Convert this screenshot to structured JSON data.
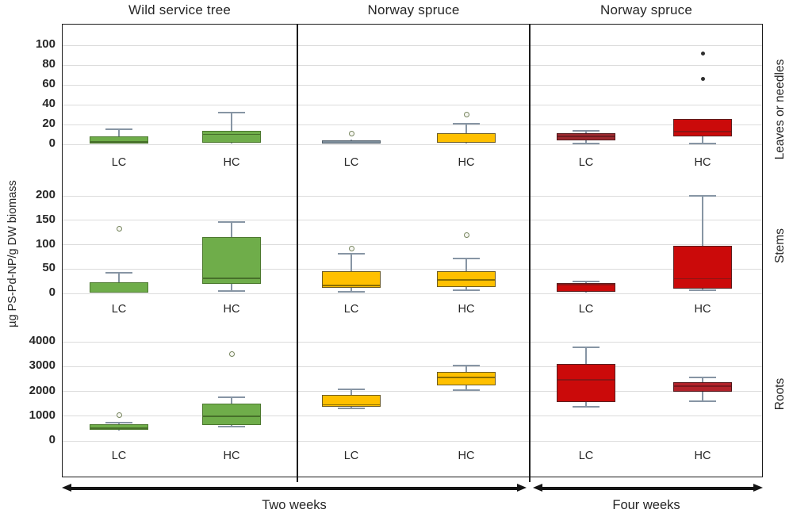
{
  "chart_data": {
    "type": "boxplot",
    "ylabel": "µg PS-Pd-NP/g DW biomass",
    "columns": [
      {
        "title": "Wild service tree",
        "period": "Two weeks",
        "color_key": "green"
      },
      {
        "title": "Norway spruce",
        "period": "Two weeks",
        "color_key": "yellow"
      },
      {
        "title": "Norway spruce",
        "period": "Four weeks",
        "color_key": "red"
      }
    ],
    "rows": [
      {
        "label": "Leaves or needles",
        "ticks": [
          0,
          20,
          40,
          60,
          80,
          100
        ],
        "ylim": [
          0,
          122
        ]
      },
      {
        "label": "Stems",
        "ticks": [
          0,
          50,
          100,
          150,
          200
        ],
        "ylim": [
          0,
          232
        ]
      },
      {
        "label": "Roots",
        "ticks": [
          0,
          1000,
          2000,
          3000,
          4000
        ],
        "ylim": [
          0,
          4830
        ]
      }
    ],
    "groups": [
      "LC",
      "HC"
    ],
    "periods": [
      {
        "label": "Two weeks",
        "panels": [
          0,
          1
        ]
      },
      {
        "label": "Four weeks",
        "panels": [
          2
        ]
      }
    ],
    "grid": "horizontal",
    "legend": "none",
    "boxes": [
      {
        "row": 0,
        "col": 0,
        "group": "LC",
        "color": "green",
        "low": 0.5,
        "q1": 1,
        "median": 2.5,
        "q3": 8,
        "high": 15,
        "outliers": []
      },
      {
        "row": 0,
        "col": 0,
        "group": "HC",
        "color": "green",
        "low": 1,
        "q1": 2,
        "median": 10,
        "q3": 14,
        "high": 32,
        "outliers": []
      },
      {
        "row": 0,
        "col": 1,
        "group": "LC",
        "color": "gray",
        "low": 0.5,
        "q1": 0.8,
        "median": 2,
        "q3": 4,
        "high": 4.5,
        "outliers": [
          11
        ]
      },
      {
        "row": 0,
        "col": 1,
        "group": "HC",
        "color": "yellow",
        "low": 1,
        "q1": 2,
        "median": 3,
        "q3": 11,
        "high": 21,
        "outliers": [
          30
        ]
      },
      {
        "row": 0,
        "col": 2,
        "group": "LC",
        "color": "red_dark",
        "low": 1,
        "q1": 4,
        "median": 8,
        "q3": 11,
        "high": 14,
        "outliers": []
      },
      {
        "row": 0,
        "col": 2,
        "group": "HC",
        "color": "red",
        "low": 1,
        "q1": 8,
        "median": 13,
        "q3": 26,
        "high": 26,
        "outliers": [
          66,
          92
        ]
      },
      {
        "row": 1,
        "col": 0,
        "group": "LC",
        "color": "green",
        "low": 1,
        "q1": 2,
        "median": 4,
        "q3": 23,
        "high": 43,
        "outliers": [
          133
        ]
      },
      {
        "row": 1,
        "col": 0,
        "group": "HC",
        "color": "green",
        "low": 5,
        "q1": 20,
        "median": 31,
        "q3": 115,
        "high": 147,
        "outliers": []
      },
      {
        "row": 1,
        "col": 1,
        "group": "LC",
        "color": "yellow",
        "low": 3,
        "q1": 12,
        "median": 16,
        "q3": 45,
        "high": 81,
        "outliers": [
          92
        ]
      },
      {
        "row": 1,
        "col": 1,
        "group": "HC",
        "color": "yellow",
        "low": 6,
        "q1": 13,
        "median": 28,
        "q3": 46,
        "high": 72,
        "outliers": [
          119
        ]
      },
      {
        "row": 1,
        "col": 2,
        "group": "LC",
        "color": "red",
        "low": 2,
        "q1": 3,
        "median": 18,
        "q3": 21,
        "high": 25,
        "outliers": []
      },
      {
        "row": 1,
        "col": 2,
        "group": "HC",
        "color": "red",
        "low": 7,
        "q1": 10,
        "median": 30,
        "q3": 97,
        "high": 200,
        "outliers": []
      },
      {
        "row": 2,
        "col": 0,
        "group": "LC",
        "color": "green",
        "low": 430,
        "q1": 450,
        "median": 520,
        "q3": 660,
        "high": 730,
        "outliers": [
          1050
        ]
      },
      {
        "row": 2,
        "col": 0,
        "group": "HC",
        "color": "green",
        "low": 580,
        "q1": 630,
        "median": 1000,
        "q3": 1520,
        "high": 1760,
        "outliers": [
          3500
        ]
      },
      {
        "row": 2,
        "col": 1,
        "group": "LC",
        "color": "yellow",
        "low": 1300,
        "q1": 1390,
        "median": 1450,
        "q3": 1870,
        "high": 2080,
        "outliers": []
      },
      {
        "row": 2,
        "col": 1,
        "group": "HC",
        "color": "yellow",
        "low": 2040,
        "q1": 2230,
        "median": 2550,
        "q3": 2800,
        "high": 3030,
        "outliers": []
      },
      {
        "row": 2,
        "col": 2,
        "group": "LC",
        "color": "red",
        "low": 1390,
        "q1": 1580,
        "median": 2450,
        "q3": 3100,
        "high": 3780,
        "outliers": []
      },
      {
        "row": 2,
        "col": 2,
        "group": "HC",
        "color": "red_deep",
        "low": 1590,
        "q1": 1970,
        "median": 2200,
        "q3": 2380,
        "high": 2550,
        "outliers": []
      }
    ],
    "palette": {
      "green": {
        "fill": "#6FAD4A",
        "edge": "#4C782E",
        "median": "#47702A"
      },
      "yellow": {
        "fill": "#FFC000",
        "edge": "#6D5C26",
        "median": "#8A6D00"
      },
      "gray": {
        "fill": "#7D8E9C",
        "edge": "#55626E",
        "median": "#66737F"
      },
      "red_dark": {
        "fill": "#9E2A30",
        "edge": "#511619",
        "median": "#6E1D21"
      },
      "red": {
        "fill": "#CB0A0A",
        "edge": "#5A1F1F",
        "median": "#8B1515"
      },
      "red_deep": {
        "fill": "#B2222A",
        "edge": "#511619",
        "median": "#7C171D"
      },
      "whisker": "#8795A4",
      "grid": "#DCDCDC",
      "frame": "#1C1C1C",
      "outlier_ring": "#77855F",
      "outlier_dot": "#2E2E2E"
    }
  }
}
